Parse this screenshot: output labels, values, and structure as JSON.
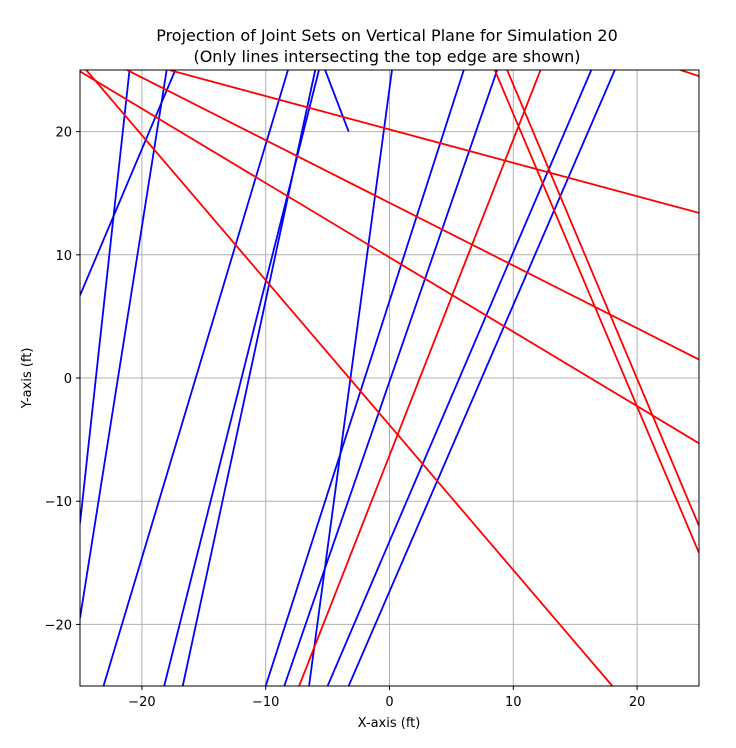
{
  "chart_data": {
    "type": "line",
    "title": "Projection of Joint Sets on Vertical Plane for Simulation 20",
    "subtitle": "(Only lines intersecting the top edge are shown)",
    "xlabel": "X-axis (ft)",
    "ylabel": "Y-axis (ft)",
    "xlim": [
      -25,
      25
    ],
    "ylim": [
      -25,
      25
    ],
    "xticks": [
      -20,
      -10,
      0,
      10,
      20
    ],
    "yticks": [
      -20,
      -10,
      0,
      10,
      20
    ],
    "xtick_labels": [
      "−20",
      "−10",
      "0",
      "10",
      "20"
    ],
    "ytick_labels": [
      "−20",
      "−10",
      "0",
      "10",
      "20"
    ],
    "grid": true,
    "colors": {
      "set_a": "#0000ff",
      "set_b": "#ff0000",
      "grid": "#b0b0b0",
      "axes": "#000000"
    },
    "series": [
      {
        "color": "#0000ff",
        "points": [
          [
            -25,
            6.7
          ],
          [
            -17.3,
            25
          ]
        ]
      },
      {
        "color": "#0000ff",
        "points": [
          [
            -25,
            -11.8
          ],
          [
            -21,
            25
          ]
        ]
      },
      {
        "color": "#0000ff",
        "points": [
          [
            -25,
            -19.5
          ],
          [
            -18,
            25
          ]
        ]
      },
      {
        "color": "#0000ff",
        "points": [
          [
            -23.1,
            -25
          ],
          [
            -8.2,
            25
          ]
        ]
      },
      {
        "color": "#0000ff",
        "points": [
          [
            -18.2,
            -25
          ],
          [
            -5.7,
            25
          ]
        ]
      },
      {
        "color": "#0000ff",
        "points": [
          [
            -16.7,
            -25
          ],
          [
            -6,
            25
          ]
        ]
      },
      {
        "color": "#0000ff",
        "points": [
          [
            -10,
            -25
          ],
          [
            6,
            25
          ]
        ]
      },
      {
        "color": "#0000ff",
        "points": [
          [
            -8.5,
            -25
          ],
          [
            8.7,
            25
          ]
        ]
      },
      {
        "color": "#0000ff",
        "points": [
          [
            -6.5,
            -25
          ],
          [
            0.2,
            25
          ]
        ]
      },
      {
        "color": "#0000ff",
        "points": [
          [
            -5,
            -25
          ],
          [
            16.3,
            25
          ]
        ]
      },
      {
        "color": "#0000ff",
        "points": [
          [
            -3.3,
            -25
          ],
          [
            18.2,
            25
          ]
        ]
      },
      {
        "color": "#0000ff",
        "points": [
          [
            -5.2,
            25
          ],
          [
            -3.3,
            20
          ]
        ]
      },
      {
        "color": "#ff0000",
        "points": [
          [
            -7.3,
            -25
          ],
          [
            12.2,
            25
          ]
        ]
      },
      {
        "color": "#ff0000",
        "points": [
          [
            -24.5,
            25
          ],
          [
            18,
            -25
          ]
        ]
      },
      {
        "color": "#ff0000",
        "points": [
          [
            -25.2,
            25
          ],
          [
            25,
            -5.3
          ]
        ]
      },
      {
        "color": "#ff0000",
        "points": [
          [
            -21.2,
            25
          ],
          [
            25,
            1.5
          ]
        ]
      },
      {
        "color": "#ff0000",
        "points": [
          [
            -17.8,
            25
          ],
          [
            25,
            13.4
          ]
        ]
      },
      {
        "color": "#ff0000",
        "points": [
          [
            9.5,
            25
          ],
          [
            25,
            -12
          ]
        ]
      },
      {
        "color": "#ff0000",
        "points": [
          [
            8.5,
            25
          ],
          [
            25,
            -14.2
          ]
        ]
      },
      {
        "color": "#ff0000",
        "points": [
          [
            23.5,
            25
          ],
          [
            25,
            24.5
          ]
        ]
      }
    ]
  }
}
